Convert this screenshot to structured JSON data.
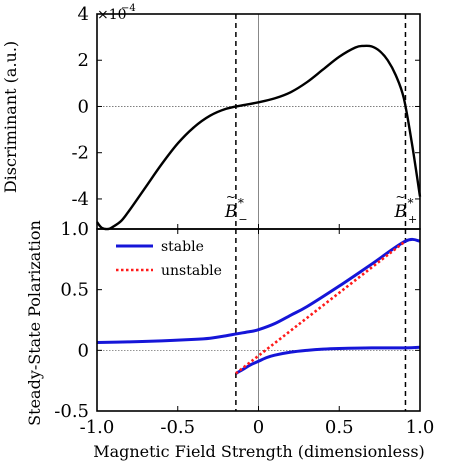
{
  "chart_data": [
    {
      "type": "line",
      "ylabel": "Discriminant (a.u.)",
      "xlim": [
        -1.0,
        1.0
      ],
      "ylim": [
        -5.3,
        4.0
      ],
      "exponent_label": "×10",
      "exponent_power": "−4",
      "yticks": [
        4,
        2,
        0,
        -2,
        -4
      ],
      "ytick_labels": [
        "4",
        "2",
        "0",
        "-2",
        "-4"
      ],
      "reference_lines": {
        "horizontal": 0,
        "vertical": 0
      },
      "markers": [
        {
          "name": "B",
          "sub": "−",
          "x": -0.14
        },
        {
          "name": "B",
          "sub": "+",
          "x": 0.91
        }
      ],
      "series": [
        {
          "color": "#000000",
          "x": [
            -1.0,
            -0.97,
            -0.93,
            -0.9,
            -0.85,
            -0.8,
            -0.7,
            -0.6,
            -0.5,
            -0.4,
            -0.3,
            -0.2,
            -0.1,
            0.0,
            0.1,
            0.2,
            0.3,
            0.4,
            0.5,
            0.6,
            0.65,
            0.7,
            0.75,
            0.8,
            0.85,
            0.9,
            0.95,
            1.0
          ],
          "y": [
            -5.0,
            -5.25,
            -5.3,
            -5.2,
            -4.95,
            -4.5,
            -3.5,
            -2.5,
            -1.6,
            -0.9,
            -0.4,
            -0.1,
            0.05,
            0.18,
            0.35,
            0.62,
            1.05,
            1.6,
            2.15,
            2.55,
            2.62,
            2.6,
            2.4,
            2.0,
            1.35,
            0.35,
            -1.6,
            -3.9
          ]
        }
      ]
    },
    {
      "type": "line",
      "xlabel": "Magnetic Field Strength (dimensionless)",
      "ylabel": "Steady-State Polarization",
      "xlim": [
        -1.0,
        1.0
      ],
      "ylim": [
        -0.5,
        1.0
      ],
      "xticks": [
        -1.0,
        -0.5,
        0,
        0.5,
        1.0
      ],
      "xtick_labels": [
        "-1.0",
        "-0.5",
        "0",
        "0.5",
        "1.0"
      ],
      "yticks": [
        1.0,
        0.5,
        0,
        -0.5
      ],
      "ytick_labels": [
        "1.0",
        "0.5",
        "0",
        "-0.5"
      ],
      "reference_lines": {
        "horizontal": 0,
        "vertical": 0
      },
      "legend": {
        "position": "top-left"
      },
      "series": [
        {
          "name": "stable",
          "color": "#1515d8",
          "style": "solid",
          "x": [
            -1.0,
            -0.8,
            -0.6,
            -0.4,
            -0.3,
            -0.2,
            -0.14,
            -0.05,
            0.0,
            0.1,
            0.2,
            0.3,
            0.5,
            0.7,
            0.91,
            1.0
          ],
          "y": [
            0.065,
            0.07,
            0.078,
            0.09,
            0.1,
            0.12,
            0.135,
            0.155,
            0.17,
            0.22,
            0.29,
            0.36,
            0.53,
            0.71,
            0.9,
            0.9
          ]
        },
        {
          "name": "",
          "color": "#1515d8",
          "style": "solid",
          "x": [
            -0.14,
            -0.1,
            -0.05,
            0.0,
            0.05,
            0.1,
            0.2,
            0.3,
            0.4,
            0.5,
            0.7,
            0.91,
            1.0
          ],
          "y": [
            -0.19,
            -0.16,
            -0.12,
            -0.09,
            -0.06,
            -0.04,
            -0.015,
            0.0,
            0.01,
            0.015,
            0.02,
            0.02,
            0.025
          ]
        },
        {
          "name": "unstable",
          "color": "#ff1a1a",
          "style": "dotted",
          "x": [
            -0.14,
            0.91
          ],
          "y": [
            -0.19,
            0.9
          ]
        }
      ]
    }
  ]
}
